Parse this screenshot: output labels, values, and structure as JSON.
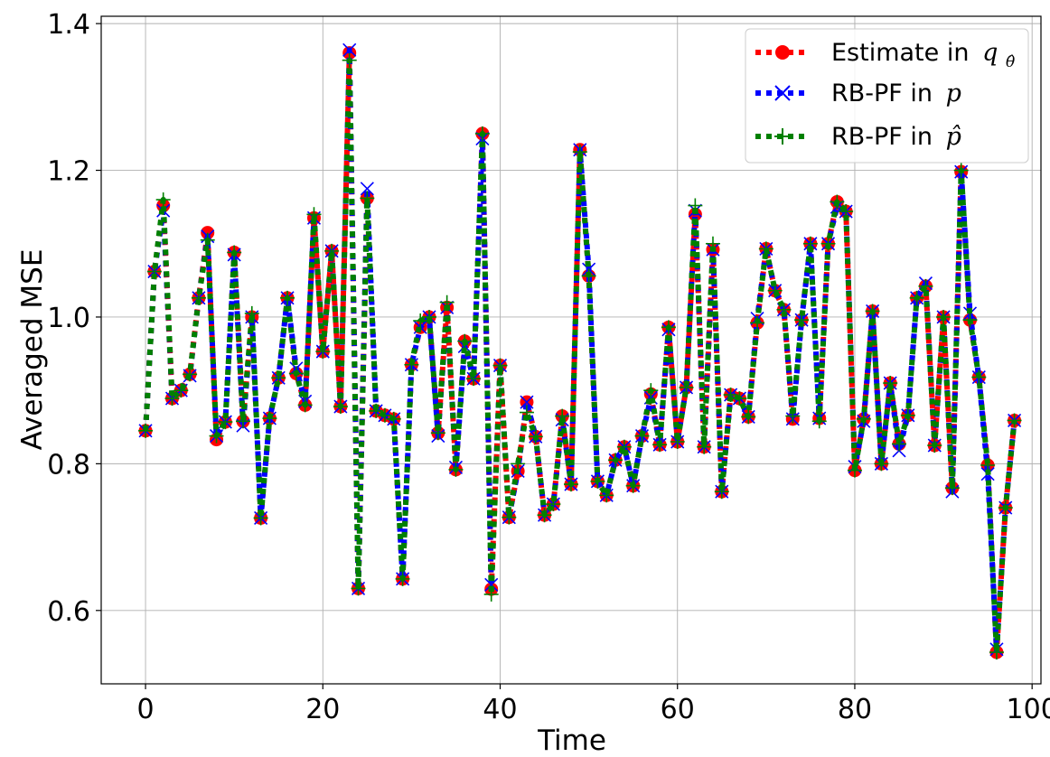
{
  "chart_data": {
    "type": "line",
    "xlabel": "Time",
    "ylabel": "Averaged MSE",
    "xlim": [
      -5,
      101
    ],
    "ylim": [
      0.5,
      1.41
    ],
    "xticks": [
      0,
      20,
      40,
      60,
      80,
      100
    ],
    "yticks": [
      0.6,
      0.8,
      1.0,
      1.2,
      1.4
    ],
    "xtick_labels": [
      "0",
      "20",
      "40",
      "60",
      "80",
      "100"
    ],
    "ytick_labels": [
      "0.6",
      "0.8",
      "1.0",
      "1.2",
      "1.4"
    ],
    "grid": true,
    "legend_position": "top-right",
    "x": [
      0,
      1,
      2,
      3,
      4,
      5,
      6,
      7,
      8,
      9,
      10,
      11,
      12,
      13,
      14,
      15,
      16,
      17,
      18,
      19,
      20,
      21,
      22,
      23,
      24,
      25,
      26,
      27,
      28,
      29,
      30,
      31,
      32,
      33,
      34,
      35,
      36,
      37,
      38,
      39,
      40,
      41,
      42,
      43,
      44,
      45,
      46,
      47,
      48,
      49,
      50,
      51,
      52,
      53,
      54,
      55,
      56,
      57,
      58,
      59,
      60,
      61,
      62,
      63,
      64,
      65,
      66,
      67,
      68,
      69,
      70,
      71,
      72,
      73,
      74,
      75,
      76,
      77,
      78,
      79,
      80,
      81,
      82,
      83,
      84,
      85,
      86,
      87,
      88,
      89,
      90,
      91,
      92,
      93,
      94,
      95,
      96,
      97,
      98
    ],
    "series": [
      {
        "name": "Estimate in",
        "name_math": "q",
        "name_sub": "θ̂",
        "color": "#ff0000",
        "marker": "circle",
        "values": [
          0.845,
          1.062,
          1.152,
          0.889,
          0.9,
          0.922,
          1.026,
          1.115,
          0.833,
          0.857,
          1.088,
          0.858,
          1.0,
          0.726,
          0.862,
          0.917,
          1.026,
          0.923,
          0.88,
          1.135,
          0.953,
          1.09,
          0.878,
          1.36,
          0.63,
          1.162,
          0.872,
          0.866,
          0.861,
          0.643,
          0.935,
          0.986,
          1.0,
          0.842,
          1.013,
          0.792,
          0.967,
          0.916,
          1.25,
          0.629,
          0.934,
          0.727,
          0.79,
          0.884,
          0.837,
          0.73,
          0.745,
          0.865,
          0.772,
          1.228,
          1.056,
          0.776,
          0.757,
          0.805,
          0.823,
          0.77,
          0.838,
          0.895,
          0.826,
          0.986,
          0.83,
          0.904,
          1.14,
          0.823,
          1.092,
          0.762,
          0.894,
          0.889,
          0.864,
          0.992,
          1.093,
          1.036,
          1.01,
          0.861,
          0.996,
          1.1,
          0.862,
          1.1,
          1.157,
          1.144,
          0.791,
          0.861,
          1.008,
          0.8,
          0.91,
          0.827,
          0.866,
          1.026,
          1.042,
          0.825,
          1.0,
          0.767,
          1.198,
          0.996,
          0.918,
          0.798,
          0.543,
          0.74,
          0.859
        ]
      },
      {
        "name": "RB-PF in",
        "name_math": "p",
        "name_sub": "",
        "color": "#0000ff",
        "marker": "x",
        "values": [
          0.845,
          1.062,
          1.145,
          0.889,
          0.9,
          0.92,
          1.026,
          1.11,
          0.838,
          0.857,
          1.085,
          0.852,
          1.0,
          0.726,
          0.862,
          0.917,
          1.026,
          0.93,
          0.885,
          1.135,
          0.953,
          1.09,
          0.878,
          1.364,
          0.63,
          1.175,
          0.872,
          0.866,
          0.861,
          0.643,
          0.935,
          0.986,
          1.0,
          0.838,
          1.013,
          0.795,
          0.96,
          0.916,
          1.243,
          0.635,
          0.934,
          0.727,
          0.79,
          0.884,
          0.837,
          0.73,
          0.745,
          0.86,
          0.772,
          1.228,
          1.065,
          0.776,
          0.757,
          0.805,
          0.823,
          0.77,
          0.838,
          0.89,
          0.826,
          0.983,
          0.83,
          0.904,
          1.145,
          0.823,
          1.092,
          0.762,
          0.894,
          0.889,
          0.864,
          0.998,
          1.093,
          1.036,
          1.01,
          0.861,
          0.996,
          1.1,
          0.862,
          1.1,
          1.15,
          1.144,
          0.796,
          0.858,
          1.008,
          0.8,
          0.91,
          0.818,
          0.866,
          1.026,
          1.046,
          0.825,
          1.0,
          0.762,
          1.198,
          1.005,
          0.918,
          0.786,
          0.547,
          0.74,
          0.859
        ]
      },
      {
        "name": "RB-PF in",
        "name_math": "p̂",
        "name_sub": "",
        "color": "#008000",
        "marker": "plus",
        "values": [
          0.845,
          1.062,
          1.16,
          0.889,
          0.9,
          0.922,
          1.026,
          1.105,
          0.838,
          0.857,
          1.088,
          0.858,
          1.005,
          0.726,
          0.862,
          0.917,
          1.026,
          0.923,
          0.88,
          1.14,
          0.953,
          1.09,
          0.878,
          1.35,
          0.63,
          1.162,
          0.872,
          0.866,
          0.861,
          0.643,
          0.935,
          0.995,
          1.0,
          0.842,
          1.02,
          0.792,
          0.967,
          0.916,
          1.25,
          0.622,
          0.934,
          0.727,
          0.8,
          0.87,
          0.837,
          0.73,
          0.745,
          0.865,
          0.772,
          1.225,
          1.056,
          0.776,
          0.757,
          0.805,
          0.823,
          0.77,
          0.838,
          0.9,
          0.826,
          0.986,
          0.83,
          0.904,
          1.152,
          0.823,
          1.1,
          0.762,
          0.894,
          0.889,
          0.864,
          0.992,
          1.093,
          1.036,
          1.01,
          0.865,
          0.996,
          1.1,
          0.858,
          1.1,
          1.157,
          1.144,
          0.791,
          0.861,
          1.008,
          0.8,
          0.91,
          0.827,
          0.866,
          1.026,
          1.042,
          0.825,
          1.0,
          0.767,
          1.2,
          0.996,
          0.918,
          0.798,
          0.543,
          0.74,
          0.859
        ]
      }
    ]
  }
}
